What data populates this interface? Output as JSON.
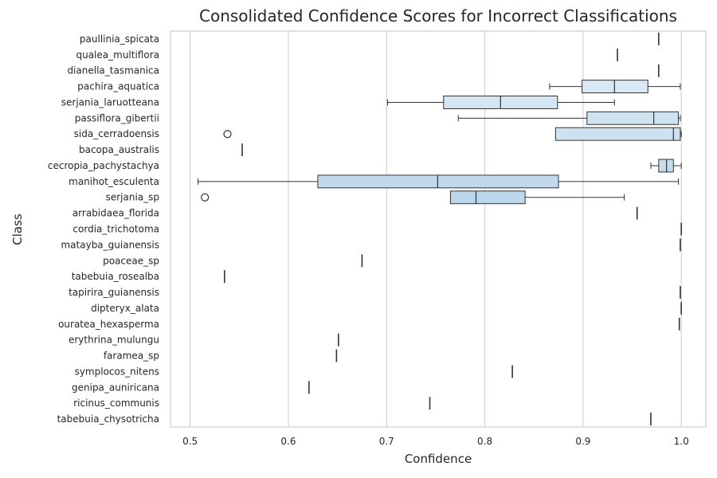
{
  "chart_data": {
    "type": "box",
    "title": "Consolidated Confidence Scores for Incorrect Classifications",
    "xlabel": "Confidence",
    "ylabel": "Class",
    "xlim": [
      0.48,
      1.025
    ],
    "xticks": [
      "0.5",
      "0.6",
      "0.7",
      "0.8",
      "0.9",
      "1.0"
    ],
    "grid": "vertical",
    "categories": [
      "paullinia_spicata",
      "qualea_multiflora",
      "dianella_tasmanica",
      "pachira_aquatica",
      "serjania_laruotteana",
      "passiflora_gibertii",
      "sida_cerradoensis",
      "bacopa_australis",
      "cecropia_pachystachya",
      "manihot_esculenta",
      "serjania_sp",
      "arrabidaea_florida",
      "cordia_trichotoma",
      "matayba_guianensis",
      "poaceae_sp",
      "tabebuia_rosealba",
      "tapirira_guianensis",
      "dipteryx_alata",
      "ouratea_hexasperma",
      "erythrina_mulungu",
      "faramea_sp",
      "symplocos_nitens",
      "genipa_auniricana",
      "ricinus_communis",
      "tabebuia_chysotricha"
    ],
    "boxes": [
      {
        "min": 0.977,
        "q1": 0.977,
        "median": 0.977,
        "q3": 0.977,
        "max": 0.977,
        "outliers": []
      },
      {
        "min": 0.935,
        "q1": 0.935,
        "median": 0.935,
        "q3": 0.935,
        "max": 0.935,
        "outliers": []
      },
      {
        "min": 0.977,
        "q1": 0.977,
        "median": 0.977,
        "q3": 0.977,
        "max": 0.977,
        "outliers": []
      },
      {
        "min": 0.866,
        "q1": 0.899,
        "median": 0.932,
        "q3": 0.966,
        "max": 0.999,
        "outliers": []
      },
      {
        "min": 0.701,
        "q1": 0.758,
        "median": 0.816,
        "q3": 0.874,
        "max": 0.932,
        "outliers": []
      },
      {
        "min": 0.773,
        "q1": 0.904,
        "median": 0.972,
        "q3": 0.997,
        "max": 0.999,
        "outliers": []
      },
      {
        "min": 0.872,
        "q1": 0.872,
        "median": 0.992,
        "q3": 0.999,
        "max": 1.0,
        "outliers": [
          0.538
        ]
      },
      {
        "min": 0.553,
        "q1": 0.553,
        "median": 0.553,
        "q3": 0.553,
        "max": 0.553,
        "outliers": []
      },
      {
        "min": 0.969,
        "q1": 0.977,
        "median": 0.985,
        "q3": 0.992,
        "max": 1.0,
        "outliers": []
      },
      {
        "min": 0.508,
        "q1": 0.63,
        "median": 0.752,
        "q3": 0.875,
        "max": 0.997,
        "outliers": []
      },
      {
        "min": 0.765,
        "q1": 0.765,
        "median": 0.791,
        "q3": 0.841,
        "max": 0.942,
        "outliers": [
          0.515
        ]
      },
      {
        "min": 0.955,
        "q1": 0.955,
        "median": 0.955,
        "q3": 0.955,
        "max": 0.955,
        "outliers": []
      },
      {
        "min": 1.0,
        "q1": 1.0,
        "median": 1.0,
        "q3": 1.0,
        "max": 1.0,
        "outliers": []
      },
      {
        "min": 0.999,
        "q1": 0.999,
        "median": 0.999,
        "q3": 0.999,
        "max": 0.999,
        "outliers": []
      },
      {
        "min": 0.675,
        "q1": 0.675,
        "median": 0.675,
        "q3": 0.675,
        "max": 0.675,
        "outliers": []
      },
      {
        "min": 0.535,
        "q1": 0.535,
        "median": 0.535,
        "q3": 0.535,
        "max": 0.535,
        "outliers": []
      },
      {
        "min": 0.999,
        "q1": 0.999,
        "median": 0.999,
        "q3": 0.999,
        "max": 0.999,
        "outliers": []
      },
      {
        "min": 1.0,
        "q1": 1.0,
        "median": 1.0,
        "q3": 1.0,
        "max": 1.0,
        "outliers": []
      },
      {
        "min": 0.998,
        "q1": 0.998,
        "median": 0.998,
        "q3": 0.998,
        "max": 0.998,
        "outliers": []
      },
      {
        "min": 0.651,
        "q1": 0.651,
        "median": 0.651,
        "q3": 0.651,
        "max": 0.651,
        "outliers": []
      },
      {
        "min": 0.649,
        "q1": 0.649,
        "median": 0.649,
        "q3": 0.649,
        "max": 0.649,
        "outliers": []
      },
      {
        "min": 0.828,
        "q1": 0.828,
        "median": 0.828,
        "q3": 0.828,
        "max": 0.828,
        "outliers": []
      },
      {
        "min": 0.621,
        "q1": 0.621,
        "median": 0.621,
        "q3": 0.621,
        "max": 0.621,
        "outliers": []
      },
      {
        "min": 0.744,
        "q1": 0.744,
        "median": 0.744,
        "q3": 0.744,
        "max": 0.744,
        "outliers": []
      },
      {
        "min": 0.969,
        "q1": 0.969,
        "median": 0.969,
        "q3": 0.969,
        "max": 0.969,
        "outliers": []
      }
    ],
    "colors": {
      "palette_start": "#e4eff9",
      "palette_end": "#86b5d4",
      "edge": "#333333",
      "grid": "#cccccc",
      "axes_edge": "#cccccc"
    }
  }
}
